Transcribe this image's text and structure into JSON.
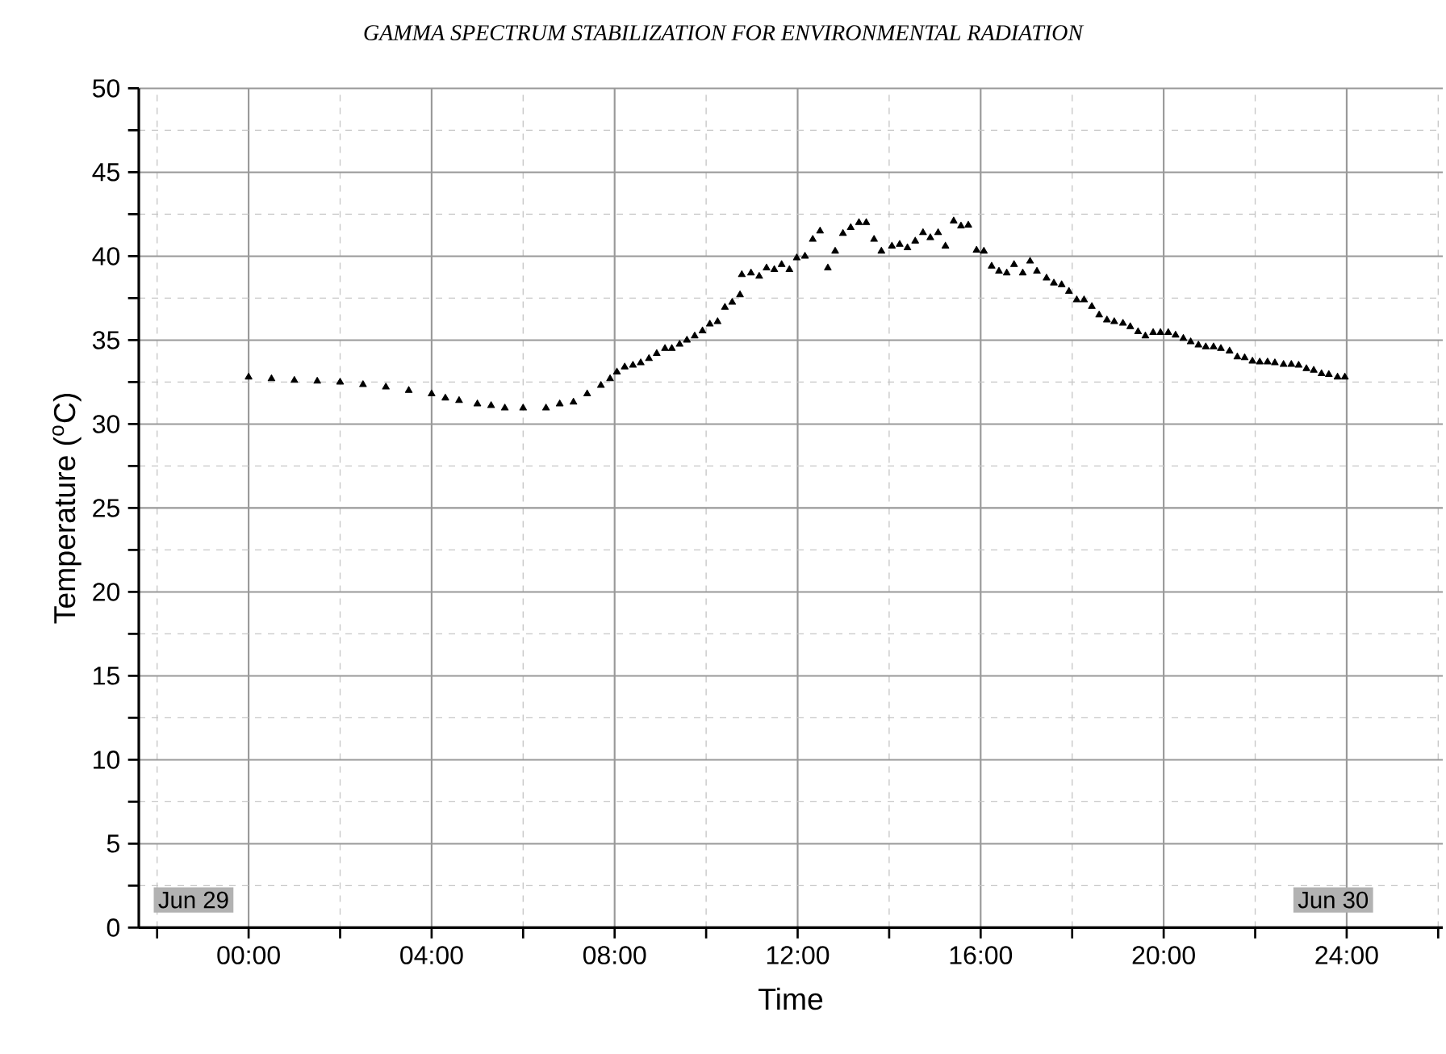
{
  "chart_data": {
    "type": "scatter",
    "title": "GAMMA SPECTRUM STABILIZATION FOR ENVIRONMENTAL RADIATION",
    "xlabel": "Time",
    "ylabel": "Temperature ($^{o}$C)",
    "annotations": [
      "Jun 29",
      "Jun 30"
    ],
    "marker": "triangle",
    "grid": true,
    "xlim": [
      -2.4,
      26.1
    ],
    "ylim": [
      0,
      50
    ],
    "xticks": [
      {
        "value": -2,
        "label": null
      },
      {
        "value": 0,
        "label": "00:00"
      },
      {
        "value": 2,
        "label": null
      },
      {
        "value": 4,
        "label": "04:00"
      },
      {
        "value": 6,
        "label": null
      },
      {
        "value": 8,
        "label": "08:00"
      },
      {
        "value": 10,
        "label": null
      },
      {
        "value": 12,
        "label": "12:00"
      },
      {
        "value": 14,
        "label": null
      },
      {
        "value": 16,
        "label": "16:00"
      },
      {
        "value": 18,
        "label": null
      },
      {
        "value": 20,
        "label": "20:00"
      },
      {
        "value": 22,
        "label": null
      },
      {
        "value": 24,
        "label": "24:00"
      },
      {
        "value": 26,
        "label": null
      }
    ],
    "yticks": [
      0,
      {
        "value": 2.5,
        "label": null
      },
      5,
      {
        "value": 7.5,
        "label": null
      },
      10,
      {
        "value": 12.5,
        "label": null
      },
      15,
      {
        "value": 17.5,
        "label": null
      },
      20,
      {
        "value": 22.5,
        "label": null
      },
      25,
      {
        "value": 27.5,
        "label": null
      },
      30,
      {
        "value": 32.5,
        "label": null
      },
      35,
      {
        "value": 37.5,
        "label": null
      },
      40,
      {
        "value": 42.5,
        "label": null
      },
      45,
      {
        "value": 47.5,
        "label": null
      },
      50
    ],
    "series": [
      {
        "color": "#000000",
        "x": [
          0,
          0.5,
          1,
          1.5,
          2,
          2.5,
          3,
          3.5,
          4,
          4.3,
          4.6,
          5,
          5.3,
          5.6,
          6,
          6.5,
          6.8,
          7.1,
          7.4,
          7.7,
          7.9,
          8.05,
          8.22,
          8.4,
          8.57,
          8.75,
          8.92,
          9.1,
          9.25,
          9.42,
          9.58,
          9.75,
          9.92,
          10.08,
          10.25,
          10.41,
          10.57,
          10.74,
          10.78,
          10.98,
          11.16,
          11.32,
          11.49,
          11.65,
          11.82,
          11.98,
          12.16,
          12.33,
          12.49,
          12.66,
          12.82,
          12.99,
          13.16,
          13.34,
          13.5,
          13.67,
          13.83,
          14.06,
          14.23,
          14.4,
          14.57,
          14.74,
          14.9,
          15.07,
          15.23,
          15.41,
          15.57,
          15.73,
          15.91,
          16.07,
          16.24,
          16.4,
          16.57,
          16.73,
          16.92,
          17.08,
          17.23,
          17.44,
          17.6,
          17.77,
          17.93,
          18.1,
          18.26,
          18.43,
          18.59,
          18.76,
          18.92,
          19.11,
          19.27,
          19.44,
          19.6,
          19.77,
          19.93,
          20.1,
          20.26,
          20.43,
          20.59,
          20.76,
          20.92,
          21.09,
          21.25,
          21.44,
          21.61,
          21.77,
          21.94,
          22.1,
          22.27,
          22.43,
          22.62,
          22.79,
          22.95,
          23.12,
          23.28,
          23.45,
          23.61,
          23.8,
          23.96
        ],
        "values": [
          32.8,
          32.7,
          32.6,
          32.55,
          32.5,
          32.35,
          32.2,
          32.0,
          31.8,
          31.55,
          31.4,
          31.2,
          31.1,
          30.95,
          30.95,
          30.95,
          31.2,
          31.3,
          31.8,
          32.3,
          32.7,
          33.1,
          33.4,
          33.5,
          33.65,
          33.9,
          34.2,
          34.5,
          34.5,
          34.75,
          35.0,
          35.25,
          35.55,
          35.95,
          36.1,
          36.95,
          37.25,
          37.7,
          38.9,
          39.0,
          38.8,
          39.3,
          39.2,
          39.5,
          39.2,
          39.9,
          40.0,
          41.0,
          41.5,
          39.3,
          40.3,
          41.35,
          41.7,
          42.0,
          42.0,
          41.0,
          40.3,
          40.6,
          40.7,
          40.5,
          40.9,
          41.4,
          41.1,
          41.4,
          40.6,
          42.1,
          41.8,
          41.85,
          40.35,
          40.3,
          39.4,
          39.1,
          39.0,
          39.5,
          39.0,
          39.7,
          39.1,
          38.7,
          38.4,
          38.3,
          37.9,
          37.4,
          37.4,
          37.0,
          36.5,
          36.2,
          36.1,
          36.0,
          35.8,
          35.5,
          35.25,
          35.45,
          35.45,
          35.45,
          35.3,
          35.1,
          34.9,
          34.7,
          34.6,
          34.6,
          34.5,
          34.35,
          34.0,
          33.95,
          33.75,
          33.7,
          33.7,
          33.65,
          33.55,
          33.55,
          33.5,
          33.3,
          33.2,
          33.0,
          32.95,
          32.8,
          32.8
        ]
      }
    ]
  }
}
